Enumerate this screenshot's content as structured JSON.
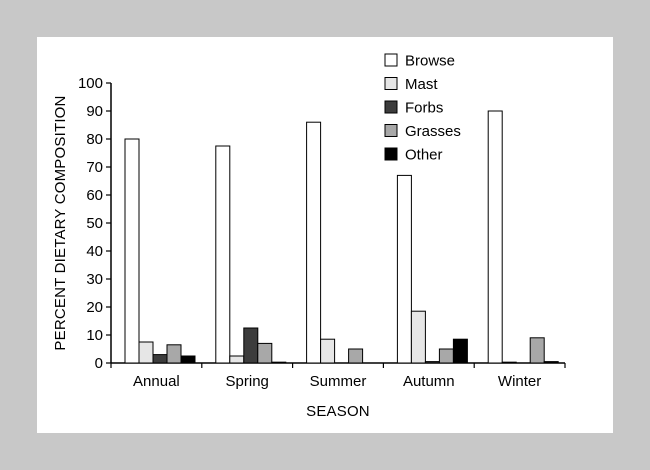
{
  "chart_data": {
    "type": "bar",
    "title": "",
    "xlabel": "SEASON",
    "ylabel": "PERCENT DIETARY COMPOSITION",
    "ylim": [
      0,
      100
    ],
    "yticks": [
      0,
      10,
      20,
      30,
      40,
      50,
      60,
      70,
      80,
      90,
      100
    ],
    "grid": false,
    "legend_position": "top-right",
    "categories": [
      "Annual",
      "Spring",
      "Summer",
      "Autumn",
      "Winter"
    ],
    "series": [
      {
        "name": "Browse",
        "color": "#ffffff",
        "values": [
          80,
          77.5,
          86,
          67,
          90
        ]
      },
      {
        "name": "Mast",
        "color": "#e6e6e6",
        "values": [
          7.5,
          2.5,
          8.5,
          18.5,
          0.3
        ]
      },
      {
        "name": "Forbs",
        "color": "#3c3c3c",
        "values": [
          3,
          12.5,
          0,
          0.5,
          0
        ]
      },
      {
        "name": "Grasses",
        "color": "#a8a8a8",
        "values": [
          6.5,
          7,
          5,
          5,
          9
        ]
      },
      {
        "name": "Other",
        "color": "#000000",
        "values": [
          2.5,
          0.3,
          0,
          8.5,
          0.5
        ]
      }
    ]
  }
}
